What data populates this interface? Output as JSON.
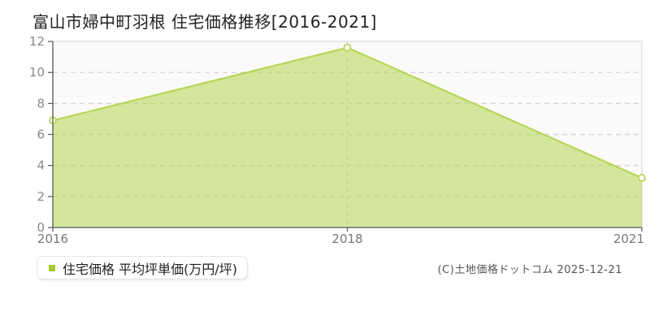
{
  "header": {
    "title": "富山市婦中町羽根 住宅価格推移[2016-2021]"
  },
  "legend": {
    "label": "住宅価格 平均坪単価(万円/坪)",
    "marker_color": "#a3cb2a"
  },
  "footer": {
    "copyright": "(C)土地価格ドットコム 2025-12-21"
  },
  "chart_data": {
    "type": "area",
    "categories": [
      "2016",
      "2018",
      "2021"
    ],
    "series": [
      {
        "name": "住宅価格 平均坪単価(万円/坪)",
        "values": [
          6.9,
          11.6,
          3.2
        ]
      }
    ],
    "title": "富山市婦中町羽根 住宅価格推移[2016-2021]",
    "xlabel": "",
    "ylabel": "平均坪単価(万円/坪)",
    "ylim": [
      0,
      12
    ],
    "yticks": [
      0,
      2,
      4,
      6,
      8,
      10,
      12
    ],
    "grid": true,
    "legend_position": "bottom-left",
    "colors": {
      "line": "#b7d558",
      "fill": "rgba(181,213,76,0.55)",
      "marker_fill": "#ffffff",
      "grid": "#d6d6d6",
      "axis": "#555555",
      "tick_label": "#888888",
      "x_label": "#777777",
      "plot_background": "#fafafa",
      "border": "#dcdcdc"
    }
  }
}
